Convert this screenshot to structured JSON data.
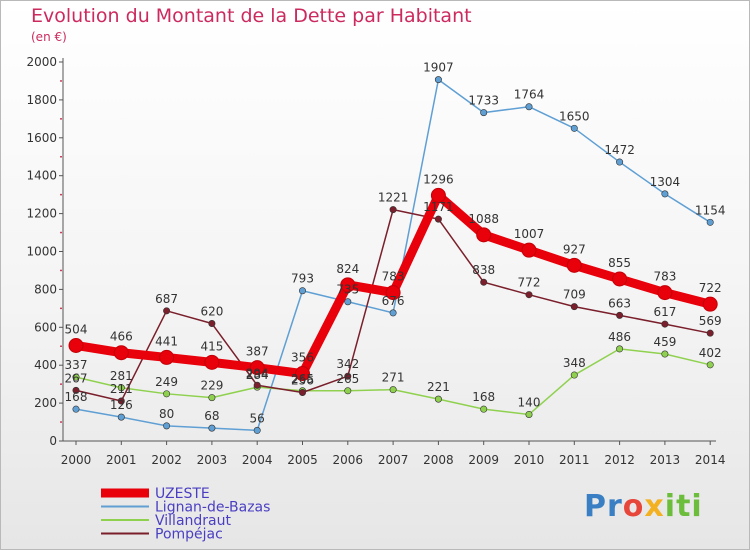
{
  "chart_data": {
    "type": "line",
    "title": "Evolution du Montant de la Dette par Habitant",
    "subtitle": "(en €)",
    "ylim": [
      0,
      2000
    ],
    "yticks": [
      0,
      200,
      400,
      600,
      800,
      1000,
      1200,
      1400,
      1600,
      1800,
      2000
    ],
    "x": [
      "2000",
      "2001",
      "2002",
      "2003",
      "2004",
      "2005",
      "2006",
      "2007",
      "2008",
      "2009",
      "2010",
      "2011",
      "2012",
      "2013",
      "2014"
    ],
    "grid": false,
    "legend_position": "bottom-left",
    "series": [
      {
        "name": "UZESTE",
        "color": "#e8000b",
        "values": [
          504,
          466,
          441,
          415,
          387,
          356,
          824,
          783,
          1296,
          1088,
          1007,
          927,
          855,
          783,
          722
        ]
      },
      {
        "name": "Lignan-de-Bazas",
        "color": "#5f9fd4",
        "values": [
          168,
          126,
          80,
          68,
          56,
          793,
          735,
          676,
          1907,
          1733,
          1764,
          1650,
          1472,
          1304,
          1154
        ]
      },
      {
        "name": "Villandraut",
        "color": "#8fd14f",
        "values": [
          337,
          281,
          249,
          229,
          284,
          265,
          265,
          271,
          221,
          168,
          140,
          348,
          486,
          459,
          402
        ]
      },
      {
        "name": "Pompéjac",
        "color": "#7a1f2b",
        "values": [
          267,
          211,
          687,
          620,
          294,
          256,
          342,
          1221,
          1171,
          838,
          772,
          709,
          663,
          617,
          569
        ]
      }
    ]
  },
  "logo": {
    "part1": "Pr",
    "part2": "o",
    "part3": "x",
    "part4": "iti"
  }
}
